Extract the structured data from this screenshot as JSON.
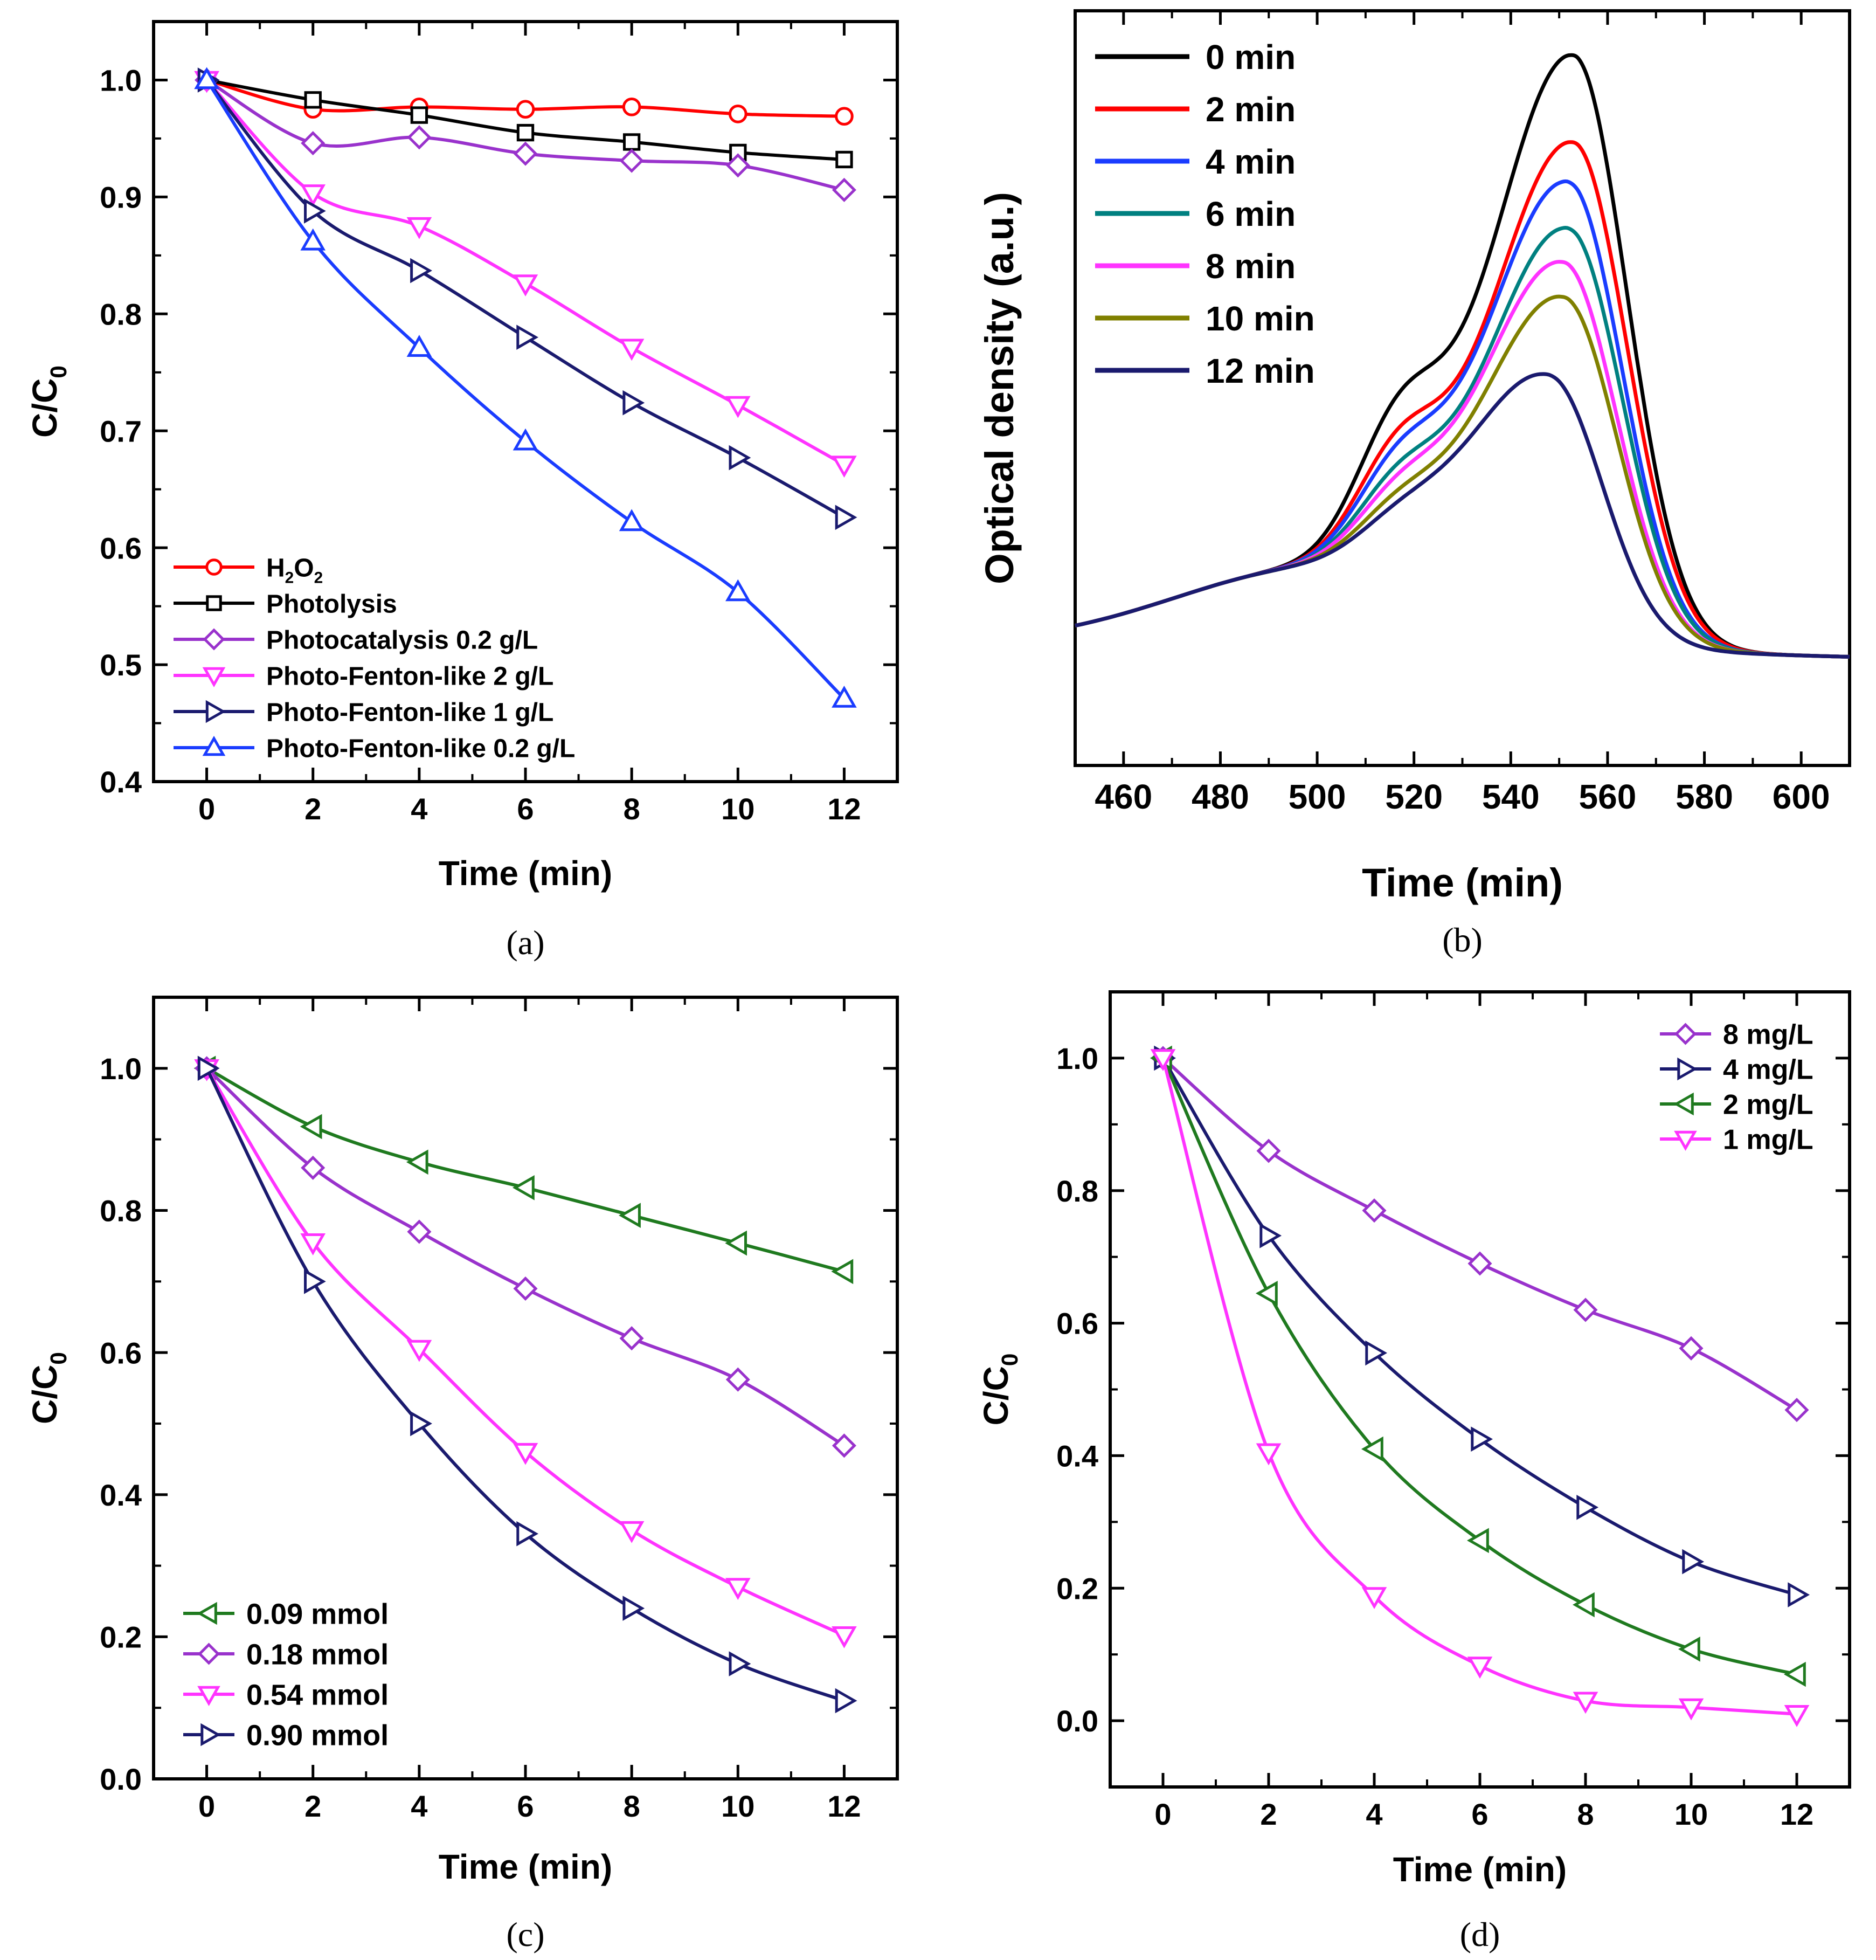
{
  "chart_data": [
    {
      "panel": "a",
      "caption": "(a)",
      "type": "line",
      "xlabel": "Time (min)",
      "ylabel_main": "C/C",
      "ylabel_sub": "0",
      "xlim": [
        -1,
        13
      ],
      "ylim": [
        0.4,
        1.05
      ],
      "xticks": [
        0,
        2,
        4,
        6,
        8,
        10,
        12
      ],
      "yticks": [
        0.4,
        0.5,
        0.6,
        0.7,
        0.8,
        0.9,
        1.0
      ],
      "ytick_labels": [
        "0.4",
        "0.5",
        "0.6",
        "0.7",
        "0.8",
        "0.9",
        "1.0"
      ],
      "legend_position": "bottom-left",
      "series": [
        {
          "name": "H2O2",
          "label_parts": [
            "H",
            "2",
            "O",
            "2"
          ],
          "color": "#ff0000",
          "marker": "circle",
          "x": [
            0,
            2,
            4,
            6,
            8,
            10,
            12
          ],
          "values": [
            1.0,
            0.975,
            0.977,
            0.975,
            0.977,
            0.971,
            0.969
          ]
        },
        {
          "name": "Photolysis",
          "color": "#000000",
          "marker": "square",
          "x": [
            0,
            2,
            4,
            6,
            8,
            10,
            12
          ],
          "values": [
            1.0,
            0.983,
            0.97,
            0.955,
            0.947,
            0.938,
            0.932
          ]
        },
        {
          "name": "Photocatalysis 0.2 g/L",
          "color": "#9932cc",
          "marker": "diamond",
          "x": [
            0,
            2,
            4,
            6,
            8,
            10,
            12
          ],
          "values": [
            1.0,
            0.946,
            0.951,
            0.937,
            0.931,
            0.927,
            0.906
          ]
        },
        {
          "name": "Photo-Fenton-like 2 g/L",
          "color": "#ff33ff",
          "marker": "triangle-down",
          "x": [
            0,
            2,
            4,
            6,
            8,
            10,
            12
          ],
          "values": [
            1.0,
            0.903,
            0.875,
            0.826,
            0.771,
            0.722,
            0.671
          ]
        },
        {
          "name": "Photo-Fenton-like 1 g/L",
          "color": "#1a1a6e",
          "marker": "triangle-right",
          "x": [
            0,
            2,
            4,
            6,
            8,
            10,
            12
          ],
          "values": [
            1.0,
            0.888,
            0.837,
            0.78,
            0.724,
            0.677,
            0.626
          ]
        },
        {
          "name": "Photo-Fenton-like 0.2 g/L",
          "color": "#1a3cff",
          "marker": "triangle-up",
          "x": [
            0,
            2,
            4,
            6,
            8,
            10,
            12
          ],
          "values": [
            1.0,
            0.862,
            0.771,
            0.691,
            0.622,
            0.562,
            0.471
          ]
        }
      ]
    },
    {
      "panel": "b",
      "caption": "(b)",
      "type": "line",
      "xlabel": "Time (min)",
      "ylabel": "Optical density (a.u.)",
      "xlim": [
        450,
        610
      ],
      "ylim": [
        -0.2,
        1.1
      ],
      "xticks": [
        460,
        480,
        500,
        520,
        540,
        560,
        580,
        600
      ],
      "legend_position": "top-left",
      "series": [
        {
          "name": "0 min",
          "color": "#000000",
          "peak_wavelength": 553,
          "peak": 1.0
        },
        {
          "name": "2 min",
          "color": "#ff0000",
          "peak_wavelength": 553,
          "peak": 0.85
        },
        {
          "name": "4 min",
          "color": "#1a3cff",
          "peak_wavelength": 552,
          "peak": 0.78
        },
        {
          "name": "6 min",
          "color": "#008080",
          "peak_wavelength": 552,
          "peak": 0.7
        },
        {
          "name": "8 min",
          "color": "#ff33ff",
          "peak_wavelength": 551,
          "peak": 0.64
        },
        {
          "name": "10 min",
          "color": "#808000",
          "peak_wavelength": 551,
          "peak": 0.58
        },
        {
          "name": "12 min",
          "color": "#1a1a6e",
          "peak_wavelength": 548,
          "peak": 0.44
        }
      ]
    },
    {
      "panel": "c",
      "caption": "(c)",
      "type": "line",
      "xlabel": "Time (min)",
      "ylabel_main": "C/C",
      "ylabel_sub": "0",
      "xlim": [
        -1,
        13
      ],
      "ylim": [
        0,
        1.1
      ],
      "xticks": [
        0,
        2,
        4,
        6,
        8,
        10,
        12
      ],
      "yticks": [
        0,
        0.2,
        0.4,
        0.6,
        0.8,
        1.0
      ],
      "ytick_labels": [
        "0.0",
        "0.2",
        "0.4",
        "0.6",
        "0.8",
        "1.0"
      ],
      "legend_position": "bottom-left",
      "series": [
        {
          "name": "0.09 mmol",
          "color": "#1f7a1f",
          "marker": "triangle-left",
          "x": [
            0,
            2,
            4,
            6,
            8,
            10,
            12
          ],
          "values": [
            1.0,
            0.918,
            0.868,
            0.832,
            0.793,
            0.754,
            0.714
          ]
        },
        {
          "name": "0.18 mmol",
          "color": "#9932cc",
          "marker": "diamond",
          "x": [
            0,
            2,
            4,
            6,
            8,
            10,
            12
          ],
          "values": [
            1.0,
            0.86,
            0.77,
            0.69,
            0.62,
            0.562,
            0.469
          ]
        },
        {
          "name": "0.54 mmol",
          "color": "#ff33ff",
          "marker": "triangle-down",
          "x": [
            0,
            2,
            4,
            6,
            8,
            10,
            12
          ],
          "values": [
            1.0,
            0.755,
            0.605,
            0.46,
            0.35,
            0.27,
            0.202
          ]
        },
        {
          "name": "0.90 mmol",
          "color": "#1a1a6e",
          "marker": "triangle-right",
          "x": [
            0,
            2,
            4,
            6,
            8,
            10,
            12
          ],
          "values": [
            1.0,
            0.7,
            0.5,
            0.345,
            0.24,
            0.162,
            0.11
          ]
        }
      ]
    },
    {
      "panel": "d",
      "caption": "(d)",
      "type": "line",
      "xlabel": "Time (min)",
      "ylabel_main": "C/C",
      "ylabel_sub": "0",
      "xlim": [
        -1,
        13
      ],
      "ylim": [
        -0.1,
        1.1
      ],
      "xticks": [
        0,
        2,
        4,
        6,
        8,
        10,
        12
      ],
      "yticks": [
        0,
        0.2,
        0.4,
        0.6,
        0.8,
        1.0
      ],
      "ytick_labels": [
        "0.0",
        "0.2",
        "0.4",
        "0.6",
        "0.8",
        "1.0"
      ],
      "legend_position": "top-right",
      "series": [
        {
          "name": "8 mg/L",
          "color": "#9932cc",
          "marker": "diamond",
          "x": [
            0,
            2,
            4,
            6,
            8,
            10,
            12
          ],
          "values": [
            1.0,
            0.86,
            0.77,
            0.69,
            0.62,
            0.562,
            0.469
          ]
        },
        {
          "name": "4 mg/L",
          "color": "#1a1a6e",
          "marker": "triangle-right",
          "x": [
            0,
            2,
            4,
            6,
            8,
            10,
            12
          ],
          "values": [
            1.0,
            0.732,
            0.555,
            0.425,
            0.322,
            0.24,
            0.19
          ]
        },
        {
          "name": "2 mg/L",
          "color": "#1f7a1f",
          "marker": "triangle-left",
          "x": [
            0,
            2,
            4,
            6,
            8,
            10,
            12
          ],
          "values": [
            1.0,
            0.645,
            0.41,
            0.272,
            0.175,
            0.108,
            0.07
          ]
        },
        {
          "name": "1 mg/L",
          "color": "#ff33ff",
          "marker": "triangle-down",
          "x": [
            0,
            2,
            4,
            6,
            8,
            10,
            12
          ],
          "values": [
            1.0,
            0.405,
            0.188,
            0.083,
            0.03,
            0.02,
            0.01
          ]
        }
      ]
    }
  ]
}
